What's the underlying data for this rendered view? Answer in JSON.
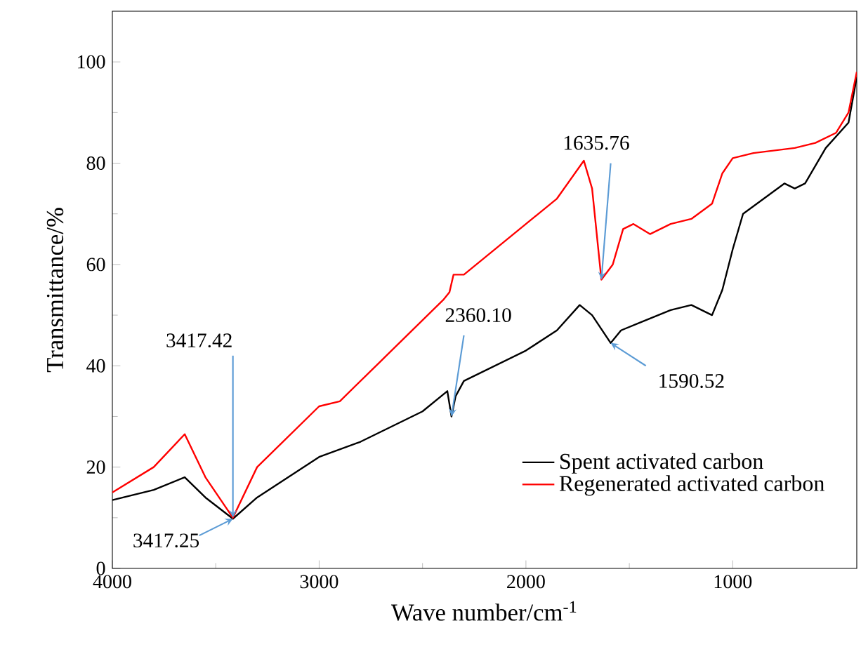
{
  "chart_data": {
    "type": "line",
    "xlabel": "Wave number/cm$^{-1}$",
    "ylabel": "Transmittance/%",
    "xlim": [
      4000,
      400
    ],
    "ylim": [
      0,
      110
    ],
    "xticks": [
      4000,
      3000,
      2000,
      1000
    ],
    "yticks": [
      0,
      20,
      40,
      60,
      80,
      100
    ],
    "legend": "bottom right",
    "grid": false,
    "series": [
      {
        "name": "Spent activated carbon",
        "color": "#000000",
        "x": [
          4000,
          3800,
          3650,
          3550,
          3417,
          3300,
          3000,
          2800,
          2500,
          2380,
          2360,
          2340,
          2300,
          2000,
          1850,
          1740,
          1680,
          1590,
          1540,
          1450,
          1300,
          1200,
          1100,
          1050,
          1000,
          950,
          850,
          750,
          700,
          650,
          550,
          440,
          400
        ],
        "values": [
          13.5,
          15.5,
          18,
          14,
          9.8,
          14,
          22,
          25,
          31,
          35,
          30,
          34,
          37,
          43,
          47,
          52,
          50,
          44.5,
          47,
          48.5,
          51,
          52,
          50,
          55,
          63,
          70,
          73,
          76,
          75,
          76,
          83,
          88,
          97
        ]
      },
      {
        "name": "Regenerated activated carbon",
        "color": "#ff0000",
        "x": [
          4000,
          3800,
          3650,
          3550,
          3417,
          3300,
          3000,
          2900,
          2700,
          2400,
          2370,
          2350,
          2300,
          2000,
          1850,
          1720,
          1680,
          1635,
          1580,
          1530,
          1480,
          1400,
          1300,
          1200,
          1100,
          1050,
          1000,
          900,
          700,
          600,
          500,
          440,
          400
        ],
        "values": [
          15,
          20,
          26.5,
          18,
          10,
          20,
          32,
          33,
          41,
          53,
          54.5,
          58,
          58,
          68,
          73,
          80.5,
          75,
          57,
          60,
          67,
          68,
          66,
          68,
          69,
          72,
          78,
          81,
          82,
          83,
          84,
          86,
          90,
          98
        ]
      }
    ],
    "annotations": [
      {
        "text": "3417.42",
        "x": 3417,
        "y": 10
      },
      {
        "text": "3417.25",
        "x": 3417,
        "y": 9.8
      },
      {
        "text": "2360.10",
        "x": 2360,
        "y": 30
      },
      {
        "text": "1635.76",
        "x": 1635,
        "y": 57
      },
      {
        "text": "1590.52",
        "x": 1590,
        "y": 44.5
      }
    ]
  }
}
